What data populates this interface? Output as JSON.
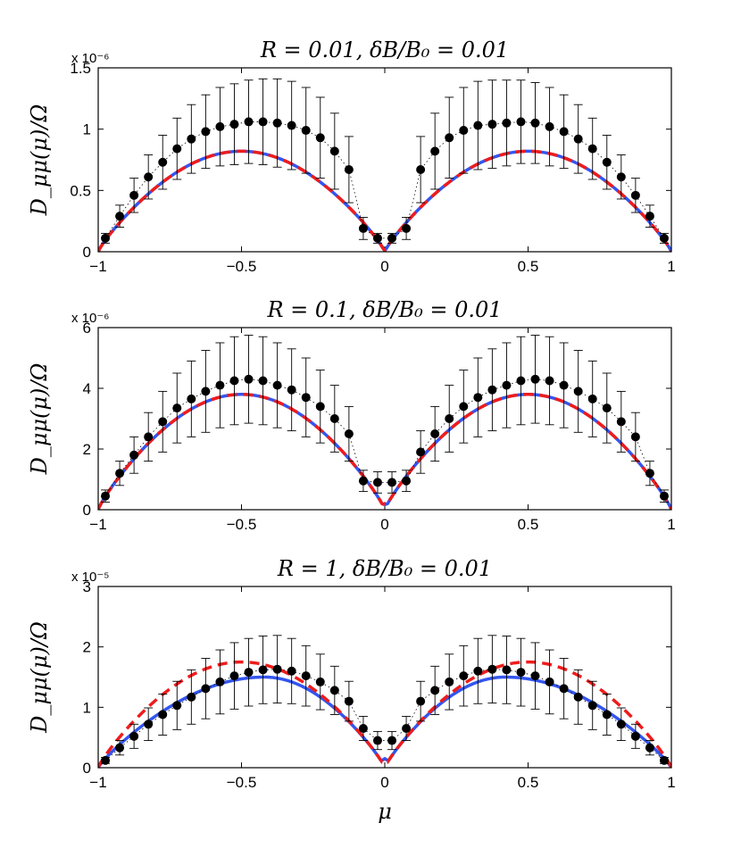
{
  "figure": {
    "xlabel": "μ",
    "ylabel": "D_μμ(μ)/Ω"
  },
  "chart_data": [
    {
      "type": "line",
      "title": "R = 0.01, δB/B₀ = 0.01",
      "scale_label": "x 10⁻⁶",
      "xlim": [
        -1,
        1
      ],
      "ylim": [
        0,
        1.5
      ],
      "xticks": [
        -1,
        -0.5,
        0,
        0.5,
        1
      ],
      "xtick_labels": [
        "−1",
        "−0.5",
        "0",
        "0.5",
        "1"
      ],
      "yticks": [
        0,
        0.5,
        1,
        1.5
      ],
      "ytick_labels": [
        "0",
        "0.5",
        "1",
        "1.5"
      ],
      "series": [
        {
          "name": "theory (blue solid)",
          "color": "#3355ee",
          "style": "solid",
          "peak": 0.82,
          "peak_mu": 0.5,
          "endpoint": 0.01
        },
        {
          "name": "theory (red dashed)",
          "color": "#ee1c1c",
          "style": "dashed",
          "peak": 0.82,
          "peak_mu": 0.5,
          "endpoint": 0.01
        }
      ],
      "simulation": {
        "mu": [
          -0.975,
          -0.925,
          -0.875,
          -0.825,
          -0.775,
          -0.725,
          -0.675,
          -0.625,
          -0.575,
          -0.525,
          -0.475,
          -0.425,
          -0.375,
          -0.325,
          -0.275,
          -0.225,
          -0.175,
          -0.125,
          -0.075,
          -0.025,
          0.025,
          0.075,
          0.125,
          0.175,
          0.225,
          0.275,
          0.325,
          0.375,
          0.425,
          0.475,
          0.525,
          0.575,
          0.625,
          0.675,
          0.725,
          0.775,
          0.825,
          0.875,
          0.925,
          0.975
        ],
        "values": [
          0.11,
          0.29,
          0.46,
          0.61,
          0.73,
          0.84,
          0.92,
          0.98,
          1.02,
          1.04,
          1.06,
          1.06,
          1.05,
          1.03,
          0.99,
          0.93,
          0.82,
          0.67,
          0.19,
          0.11,
          0.11,
          0.19,
          0.67,
          0.82,
          0.93,
          0.99,
          1.03,
          1.04,
          1.05,
          1.06,
          1.05,
          1.02,
          0.98,
          0.92,
          0.84,
          0.73,
          0.61,
          0.46,
          0.29,
          0.11
        ],
        "errors": [
          0.04,
          0.09,
          0.14,
          0.18,
          0.22,
          0.25,
          0.28,
          0.3,
          0.32,
          0.33,
          0.34,
          0.35,
          0.36,
          0.36,
          0.35,
          0.33,
          0.31,
          0.27,
          0.09,
          0.04,
          0.04,
          0.09,
          0.27,
          0.31,
          0.33,
          0.35,
          0.36,
          0.36,
          0.35,
          0.34,
          0.33,
          0.32,
          0.3,
          0.28,
          0.25,
          0.22,
          0.18,
          0.14,
          0.09,
          0.04
        ]
      }
    },
    {
      "type": "line",
      "title": "R = 0.1, δB/B₀ = 0.01",
      "scale_label": "x 10⁻⁶",
      "xlim": [
        -1,
        1
      ],
      "ylim": [
        0,
        6
      ],
      "xticks": [
        -1,
        -0.5,
        0,
        0.5,
        1
      ],
      "xtick_labels": [
        "−1",
        "−0.5",
        "0",
        "0.5",
        "1"
      ],
      "yticks": [
        0,
        2,
        4,
        6
      ],
      "ytick_labels": [
        "0",
        "2",
        "4",
        "6"
      ],
      "series": [
        {
          "name": "theory (blue solid)",
          "color": "#3355ee",
          "style": "solid",
          "peak": 3.8,
          "peak_mu": 0.5,
          "endpoint": 0.2
        },
        {
          "name": "theory (red dashed)",
          "color": "#ee1c1c",
          "style": "dashed",
          "peak": 3.8,
          "peak_mu": 0.5,
          "endpoint": 0.2
        }
      ],
      "simulation": {
        "mu": [
          -0.975,
          -0.925,
          -0.875,
          -0.825,
          -0.775,
          -0.725,
          -0.675,
          -0.625,
          -0.575,
          -0.525,
          -0.475,
          -0.425,
          -0.375,
          -0.325,
          -0.275,
          -0.225,
          -0.175,
          -0.125,
          -0.075,
          -0.025,
          0.025,
          0.075,
          0.125,
          0.175,
          0.225,
          0.275,
          0.325,
          0.375,
          0.425,
          0.475,
          0.525,
          0.575,
          0.625,
          0.675,
          0.725,
          0.775,
          0.825,
          0.875,
          0.925,
          0.975
        ],
        "values": [
          0.45,
          1.2,
          1.8,
          2.4,
          2.9,
          3.35,
          3.65,
          3.9,
          4.1,
          4.25,
          4.3,
          4.25,
          4.1,
          3.95,
          3.7,
          3.4,
          3.0,
          2.5,
          0.95,
          0.9,
          0.9,
          0.95,
          1.9,
          2.5,
          3.0,
          3.4,
          3.7,
          3.95,
          4.1,
          4.25,
          4.3,
          4.25,
          4.1,
          3.9,
          3.65,
          3.35,
          2.9,
          2.4,
          1.2,
          0.45
        ],
        "errors": [
          0.2,
          0.4,
          0.6,
          0.8,
          1.0,
          1.15,
          1.25,
          1.35,
          1.4,
          1.45,
          1.45,
          1.45,
          1.4,
          1.35,
          1.3,
          1.2,
          1.1,
          0.9,
          0.35,
          0.35,
          0.35,
          0.35,
          0.7,
          0.9,
          1.1,
          1.2,
          1.3,
          1.35,
          1.4,
          1.45,
          1.45,
          1.45,
          1.4,
          1.35,
          1.25,
          1.15,
          1.0,
          0.8,
          0.4,
          0.2
        ]
      }
    },
    {
      "type": "line",
      "title": "R = 1, δB/B₀ = 0.01",
      "scale_label": "x 10⁻⁵",
      "xlim": [
        -1,
        1
      ],
      "ylim": [
        0,
        3
      ],
      "xticks": [
        -1,
        -0.5,
        0,
        0.5,
        1
      ],
      "xtick_labels": [
        "−1",
        "−0.5",
        "0",
        "0.5",
        "1"
      ],
      "yticks": [
        0,
        1,
        2,
        3
      ],
      "ytick_labels": [
        "0",
        "1",
        "2",
        "3"
      ],
      "series": [
        {
          "name": "theory (blue solid)",
          "color": "#3355ee",
          "style": "solid",
          "peak": 1.5,
          "peak_mu": 0.42,
          "endpoint": 0.15
        },
        {
          "name": "theory (red dashed)",
          "color": "#ee1c1c",
          "style": "dashed",
          "peak": 1.75,
          "peak_mu": 0.5,
          "endpoint": 0.12
        }
      ],
      "simulation": {
        "mu": [
          -0.975,
          -0.925,
          -0.875,
          -0.825,
          -0.775,
          -0.725,
          -0.675,
          -0.625,
          -0.575,
          -0.525,
          -0.475,
          -0.425,
          -0.375,
          -0.325,
          -0.275,
          -0.225,
          -0.175,
          -0.125,
          -0.075,
          -0.025,
          0.025,
          0.075,
          0.125,
          0.175,
          0.225,
          0.275,
          0.325,
          0.375,
          0.425,
          0.475,
          0.525,
          0.575,
          0.625,
          0.675,
          0.725,
          0.775,
          0.825,
          0.875,
          0.925,
          0.975
        ],
        "values": [
          0.12,
          0.33,
          0.52,
          0.72,
          0.88,
          1.03,
          1.17,
          1.31,
          1.42,
          1.52,
          1.58,
          1.62,
          1.63,
          1.6,
          1.52,
          1.42,
          1.28,
          1.1,
          0.65,
          0.45,
          0.45,
          0.65,
          1.1,
          1.28,
          1.42,
          1.52,
          1.6,
          1.63,
          1.62,
          1.58,
          1.52,
          1.42,
          1.31,
          1.17,
          1.03,
          0.88,
          0.72,
          0.52,
          0.33,
          0.12
        ],
        "errors": [
          0.05,
          0.12,
          0.2,
          0.27,
          0.34,
          0.4,
          0.45,
          0.5,
          0.53,
          0.55,
          0.56,
          0.56,
          0.56,
          0.54,
          0.5,
          0.46,
          0.4,
          0.33,
          0.2,
          0.15,
          0.15,
          0.2,
          0.33,
          0.4,
          0.46,
          0.5,
          0.54,
          0.56,
          0.56,
          0.56,
          0.55,
          0.53,
          0.5,
          0.45,
          0.4,
          0.34,
          0.27,
          0.2,
          0.12,
          0.05
        ]
      }
    }
  ]
}
